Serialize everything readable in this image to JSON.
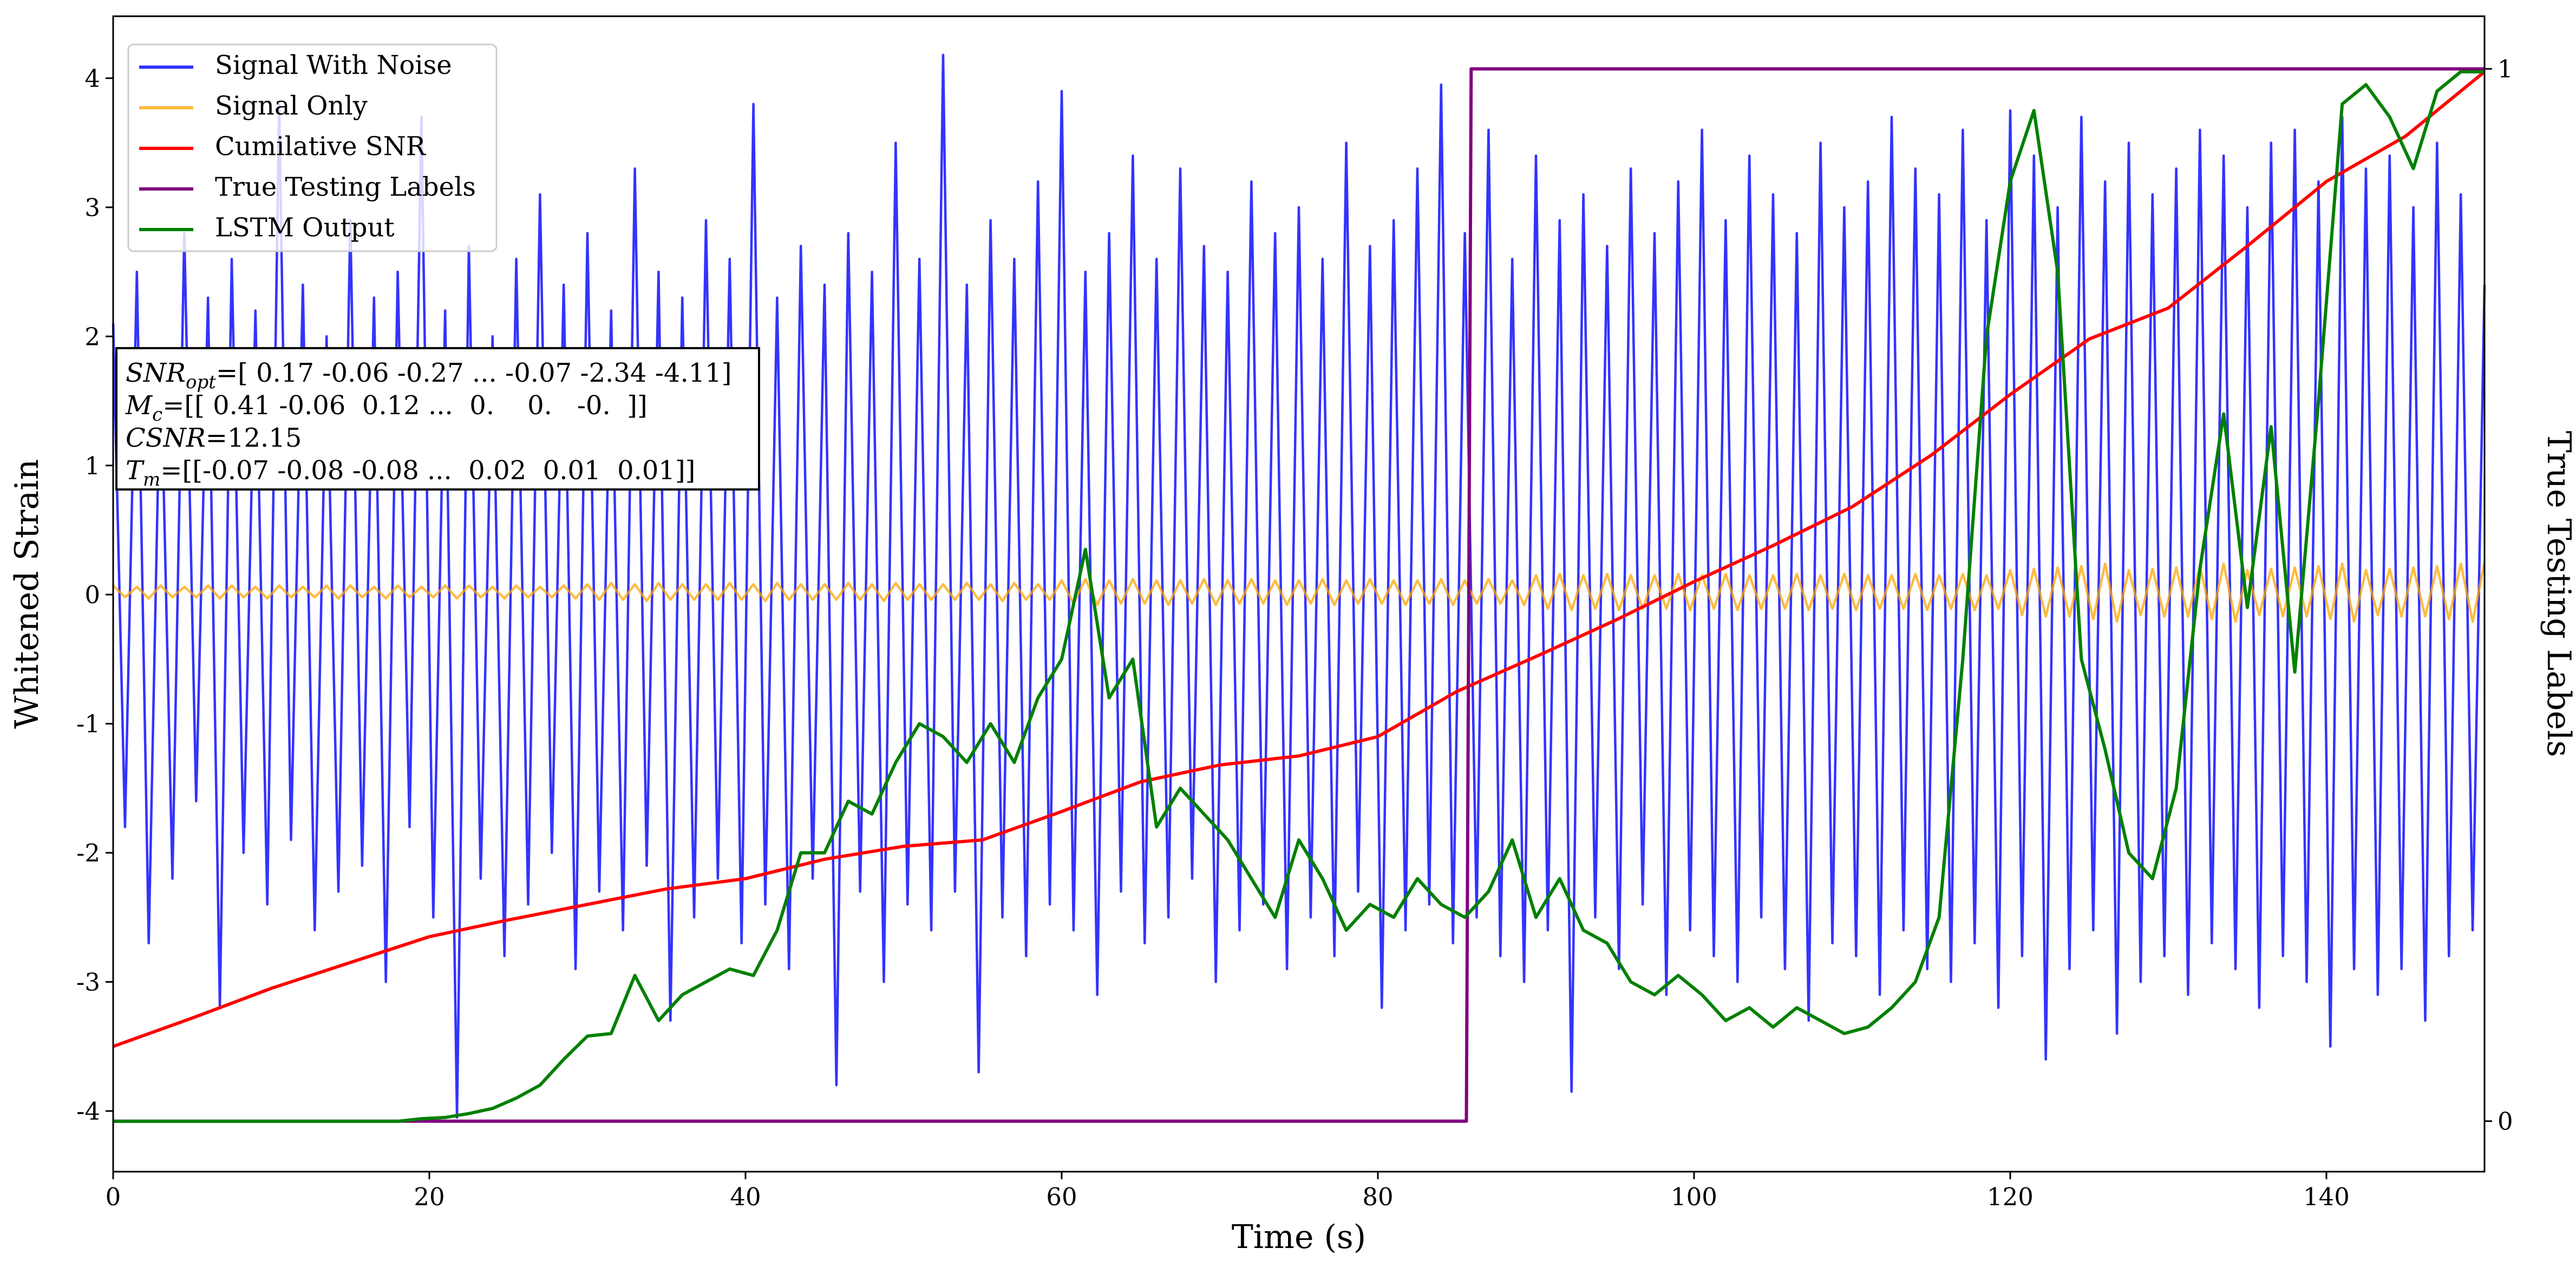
{
  "chart_data": {
    "type": "line",
    "xlabel": "Time (s)",
    "ylabel": "Whitened Strain",
    "y2label": "True Testing Labels",
    "legend": "upper left",
    "grid": false,
    "xlim": [
      0,
      150
    ],
    "xticks": [
      0,
      20,
      40,
      60,
      80,
      100,
      120,
      140
    ],
    "ylim": [
      -4.47,
      4.48
    ],
    "yticks": [
      -4,
      -3,
      -2,
      -1,
      0,
      1,
      2,
      3,
      4
    ],
    "y2lim": [
      -0.048,
      1.05
    ],
    "y2ticks": [
      0,
      1
    ],
    "x": [
      0,
      0.75,
      1.5,
      2.25,
      3,
      3.75,
      4.5,
      5.25,
      6,
      6.75,
      7.5,
      8.25,
      9,
      9.75,
      10.5,
      11.25,
      12,
      12.75,
      13.5,
      14.25,
      15,
      15.75,
      16.5,
      17.25,
      18,
      18.75,
      19.5,
      20.25,
      21,
      21.75,
      22.5,
      23.25,
      24,
      24.75,
      25.5,
      26.25,
      27,
      27.75,
      28.5,
      29.25,
      30,
      30.75,
      31.5,
      32.25,
      33,
      33.75,
      34.5,
      35.25,
      36,
      36.75,
      37.5,
      38.25,
      39,
      39.75,
      40.5,
      41.25,
      42,
      42.75,
      43.5,
      44.25,
      45,
      45.75,
      46.5,
      47.25,
      48,
      48.75,
      49.5,
      50.25,
      51,
      51.75,
      52.5,
      53.25,
      54,
      54.75,
      55.5,
      56.25,
      57,
      57.75,
      58.5,
      59.25,
      60,
      60.75,
      61.5,
      62.25,
      63,
      63.75,
      64.5,
      65.25,
      66,
      66.75,
      67.5,
      68.25,
      69,
      69.75,
      70.5,
      71.25,
      72,
      72.75,
      73.5,
      74.25,
      75,
      75.75,
      76.5,
      77.25,
      78,
      78.75,
      79.5,
      80.25,
      81,
      81.75,
      82.5,
      83.25,
      84,
      84.75,
      85.5,
      86.25,
      87,
      87.75,
      88.5,
      89.25,
      90,
      90.75,
      91.5,
      92.25,
      93,
      93.75,
      94.5,
      95.25,
      96,
      96.75,
      97.5,
      98.25,
      99,
      99.75,
      100.5,
      101.25,
      102,
      102.75,
      103.5,
      104.25,
      105,
      105.75,
      106.5,
      107.25,
      108,
      108.75,
      109.5,
      110.25,
      111,
      111.75,
      112.5,
      113.25,
      114,
      114.75,
      115.5,
      116.25,
      117,
      117.75,
      118.5,
      119.25,
      120,
      120.75,
      121.5,
      122.25,
      123,
      123.75,
      124.5,
      125.25,
      126,
      126.75,
      127.5,
      128.25,
      129,
      129.75,
      130.5,
      131.25,
      132,
      132.75,
      133.5,
      134.25,
      135,
      135.75,
      136.5,
      137.25,
      138,
      138.75,
      139.5,
      140.25,
      141,
      141.75,
      142.5,
      143.25,
      144,
      144.75,
      145.5,
      146.25,
      147,
      147.75,
      148.5,
      149.25,
      150
    ],
    "series": [
      {
        "name": "Signal With Noise",
        "color": "#0000ff",
        "alpha": 0.8,
        "values": [
          2.1,
          -1.8,
          2.5,
          -2.7,
          1.9,
          -2.2,
          2.8,
          -1.6,
          2.3,
          -3.2,
          2.6,
          -2.0,
          2.2,
          -2.4,
          3.8,
          -1.9,
          2.4,
          -2.6,
          2.0,
          -2.3,
          2.9,
          -2.1,
          2.3,
          -3.0,
          2.5,
          -1.8,
          3.7,
          -2.5,
          2.2,
          -4.05,
          2.7,
          -2.2,
          2.0,
          -2.8,
          2.6,
          -2.4,
          3.1,
          -2.0,
          2.4,
          -2.9,
          2.8,
          -2.3,
          2.2,
          -2.6,
          3.3,
          -2.1,
          2.5,
          -3.3,
          2.3,
          -2.5,
          2.9,
          -2.2,
          2.6,
          -2.7,
          3.8,
          -2.4,
          2.3,
          -2.9,
          2.7,
          -2.2,
          2.4,
          -3.8,
          2.8,
          -2.3,
          2.5,
          -3.0,
          3.5,
          -2.4,
          2.6,
          -2.6,
          4.18,
          -2.3,
          2.4,
          -3.7,
          2.9,
          -2.5,
          2.6,
          -2.8,
          3.2,
          -2.4,
          3.9,
          -2.6,
          2.5,
          -3.1,
          2.8,
          -2.3,
          3.4,
          -2.7,
          2.6,
          -2.5,
          3.3,
          -2.2,
          2.7,
          -3.0,
          2.5,
          -2.6,
          3.2,
          -2.4,
          2.8,
          -2.9,
          3.0,
          -2.5,
          2.6,
          -2.8,
          3.5,
          -2.3,
          2.7,
          -3.2,
          2.9,
          -2.6,
          3.3,
          -2.4,
          3.95,
          -2.7,
          2.8,
          -2.5,
          3.6,
          -2.8,
          2.6,
          -3.0,
          3.4,
          -2.6,
          2.9,
          -3.85,
          3.1,
          -2.5,
          2.7,
          -2.9,
          3.3,
          -2.4,
          2.8,
          -3.1,
          3.2,
          -2.6,
          3.6,
          -2.8,
          2.9,
          -3.0,
          3.4,
          -2.5,
          3.1,
          -2.9,
          2.8,
          -3.3,
          3.5,
          -2.7,
          3.0,
          -2.8,
          3.2,
          -3.1,
          3.7,
          -2.6,
          3.3,
          -2.9,
          3.1,
          -3.0,
          3.6,
          -2.7,
          2.9,
          -3.2,
          3.75,
          -2.8,
          3.4,
          -3.6,
          3.0,
          -2.9,
          3.7,
          -2.6,
          3.2,
          -3.4,
          3.5,
          -3.0,
          3.1,
          -2.8,
          3.3,
          -3.1,
          3.6,
          -2.7,
          3.4,
          -2.9,
          3.0,
          -3.2,
          3.5,
          -2.8,
          3.6,
          -3.0,
          3.2,
          -3.5,
          3.7,
          -2.9,
          3.3,
          -3.1,
          3.4,
          -2.9,
          3.0,
          -3.3,
          3.5,
          -2.8,
          3.1,
          -2.6,
          2.4
        ]
      },
      {
        "name": "Signal Only",
        "color": "#ffa500",
        "alpha": 0.75,
        "values": [
          0.07,
          -0.02,
          0.06,
          -0.03,
          0.07,
          -0.02,
          0.06,
          -0.02,
          0.07,
          -0.03,
          0.07,
          -0.02,
          0.06,
          -0.03,
          0.07,
          -0.02,
          0.06,
          -0.02,
          0.07,
          -0.03,
          0.07,
          -0.02,
          0.06,
          -0.03,
          0.07,
          -0.02,
          0.06,
          -0.02,
          0.07,
          -0.03,
          0.07,
          -0.02,
          0.06,
          -0.03,
          0.07,
          -0.02,
          0.06,
          -0.02,
          0.07,
          -0.03,
          0.08,
          -0.04,
          0.09,
          -0.04,
          0.08,
          -0.05,
          0.09,
          -0.04,
          0.08,
          -0.04,
          0.08,
          -0.04,
          0.09,
          -0.04,
          0.08,
          -0.05,
          0.09,
          -0.04,
          0.08,
          -0.04,
          0.08,
          -0.04,
          0.09,
          -0.04,
          0.08,
          -0.05,
          0.09,
          -0.04,
          0.08,
          -0.04,
          0.08,
          -0.04,
          0.09,
          -0.04,
          0.08,
          -0.05,
          0.09,
          -0.04,
          0.08,
          -0.04,
          0.11,
          -0.07,
          0.12,
          -0.08,
          0.11,
          -0.07,
          0.12,
          -0.07,
          0.11,
          -0.08,
          0.11,
          -0.07,
          0.12,
          -0.08,
          0.11,
          -0.07,
          0.12,
          -0.07,
          0.11,
          -0.08,
          0.11,
          -0.07,
          0.12,
          -0.08,
          0.11,
          -0.07,
          0.12,
          -0.07,
          0.11,
          -0.08,
          0.11,
          -0.07,
          0.12,
          -0.08,
          0.11,
          -0.07,
          0.12,
          -0.07,
          0.11,
          -0.08,
          0.15,
          -0.11,
          0.16,
          -0.12,
          0.15,
          -0.11,
          0.16,
          -0.12,
          0.15,
          -0.11,
          0.15,
          -0.11,
          0.16,
          -0.12,
          0.15,
          -0.11,
          0.16,
          -0.12,
          0.15,
          -0.11,
          0.15,
          -0.11,
          0.16,
          -0.12,
          0.15,
          -0.11,
          0.16,
          -0.12,
          0.15,
          -0.11,
          0.15,
          -0.11,
          0.16,
          -0.12,
          0.15,
          -0.11,
          0.16,
          -0.12,
          0.15,
          -0.11,
          0.19,
          -0.16,
          0.2,
          -0.17,
          0.21,
          -0.17,
          0.22,
          -0.19,
          0.24,
          -0.21,
          0.19,
          -0.16,
          0.2,
          -0.17,
          0.21,
          -0.17,
          0.22,
          -0.19,
          0.24,
          -0.21,
          0.19,
          -0.16,
          0.2,
          -0.17,
          0.21,
          -0.17,
          0.22,
          -0.19,
          0.24,
          -0.21,
          0.19,
          -0.16,
          0.2,
          -0.17,
          0.21,
          -0.17,
          0.22,
          -0.19,
          0.24,
          -0.21,
          0.25
        ]
      },
      {
        "name": "Cumilative SNR",
        "color": "#ff0000",
        "x": [
          0,
          5,
          10,
          15,
          20,
          25,
          30,
          35,
          40,
          45,
          50,
          55,
          60,
          65,
          70,
          75,
          80,
          85,
          90,
          95,
          100,
          105,
          110,
          115,
          120,
          125,
          130,
          135,
          140,
          145,
          150
        ],
        "values": [
          -3.5,
          -3.28,
          -3.05,
          -2.85,
          -2.65,
          -2.52,
          -2.4,
          -2.28,
          -2.2,
          -2.05,
          -1.95,
          -1.9,
          -1.68,
          -1.45,
          -1.32,
          -1.25,
          -1.1,
          -0.75,
          -0.48,
          -0.2,
          0.1,
          0.38,
          0.68,
          1.08,
          1.55,
          1.98,
          2.22,
          2.7,
          3.2,
          3.55,
          4.05
        ]
      },
      {
        "name": "True Testing Labels",
        "color": "#800080",
        "axis": "y2",
        "x": [
          0,
          85.6,
          85.9,
          150
        ],
        "values": [
          0,
          0,
          1,
          1
        ]
      },
      {
        "name": "LSTM Output",
        "color": "#008000",
        "x": [
          0,
          1.5,
          3,
          4.5,
          6,
          7.5,
          9,
          10.5,
          12,
          13.5,
          15,
          16.5,
          18,
          19.5,
          21,
          22.5,
          24,
          25.5,
          27,
          28.5,
          30,
          31.5,
          33,
          34.5,
          36,
          37.5,
          39,
          40.5,
          42,
          43.5,
          45,
          46.5,
          48,
          49.5,
          51,
          52.5,
          54,
          55.5,
          57,
          58.5,
          60,
          61.5,
          63,
          64.5,
          66,
          67.5,
          69,
          70.5,
          72,
          73.5,
          75,
          76.5,
          78,
          79.5,
          81,
          82.5,
          84,
          85.5,
          87,
          88.5,
          90,
          91.5,
          93,
          94.5,
          96,
          97.5,
          99,
          100.5,
          102,
          103.5,
          105,
          106.5,
          108,
          109.5,
          111,
          112.5,
          114,
          115.5,
          117,
          118.5,
          120,
          121.5,
          123,
          124.5,
          126,
          127.5,
          129,
          130.5,
          132,
          133.5,
          135,
          136.5,
          138,
          139.5,
          141,
          142.5,
          144,
          145.5,
          147,
          148.5,
          150
        ],
        "values": [
          -4.08,
          -4.08,
          -4.08,
          -4.08,
          -4.08,
          -4.08,
          -4.08,
          -4.08,
          -4.08,
          -4.08,
          -4.08,
          -4.08,
          -4.08,
          -4.06,
          -4.05,
          -4.02,
          -3.98,
          -3.9,
          -3.8,
          -3.6,
          -3.42,
          -3.4,
          -2.95,
          -3.3,
          -3.1,
          -3.0,
          -2.9,
          -2.95,
          -2.6,
          -2.0,
          -2.0,
          -1.6,
          -1.7,
          -1.3,
          -1.0,
          -1.1,
          -1.3,
          -1.0,
          -1.3,
          -0.8,
          -0.5,
          0.35,
          -0.8,
          -0.5,
          -1.8,
          -1.5,
          -1.7,
          -1.9,
          -2.2,
          -2.5,
          -1.9,
          -2.2,
          -2.6,
          -2.4,
          -2.5,
          -2.2,
          -2.4,
          -2.5,
          -2.3,
          -1.9,
          -2.5,
          -2.2,
          -2.6,
          -2.7,
          -3.0,
          -3.1,
          -2.95,
          -3.1,
          -3.3,
          -3.2,
          -3.35,
          -3.2,
          -3.3,
          -3.4,
          -3.35,
          -3.2,
          -3.0,
          -2.5,
          -0.5,
          2.0,
          3.2,
          3.75,
          2.5,
          -0.5,
          -1.2,
          -2.0,
          -2.2,
          -1.5,
          0.2,
          1.4,
          -0.1,
          1.3,
          -0.6,
          1.5,
          3.8,
          3.95,
          3.7,
          3.3,
          3.9,
          4.05,
          4.05
        ]
      }
    ],
    "annotations": [
      {
        "name": "SNR",
        "sub": "opt",
        "text": "=[ 0.17 -0.06 -0.27 ... -0.07 -2.34 -4.11]"
      },
      {
        "name": "M",
        "sub": "c",
        "text": "=[[ 0.41 -0.06  0.12 ...  0.    0.   -0.  ]]"
      },
      {
        "name": "CSNR",
        "text": "=12.15"
      },
      {
        "name": "T",
        "sub": "m",
        "text": "=[[-0.07 -0.08 -0.08 ...  0.02  0.01  0.01]]"
      }
    ]
  }
}
